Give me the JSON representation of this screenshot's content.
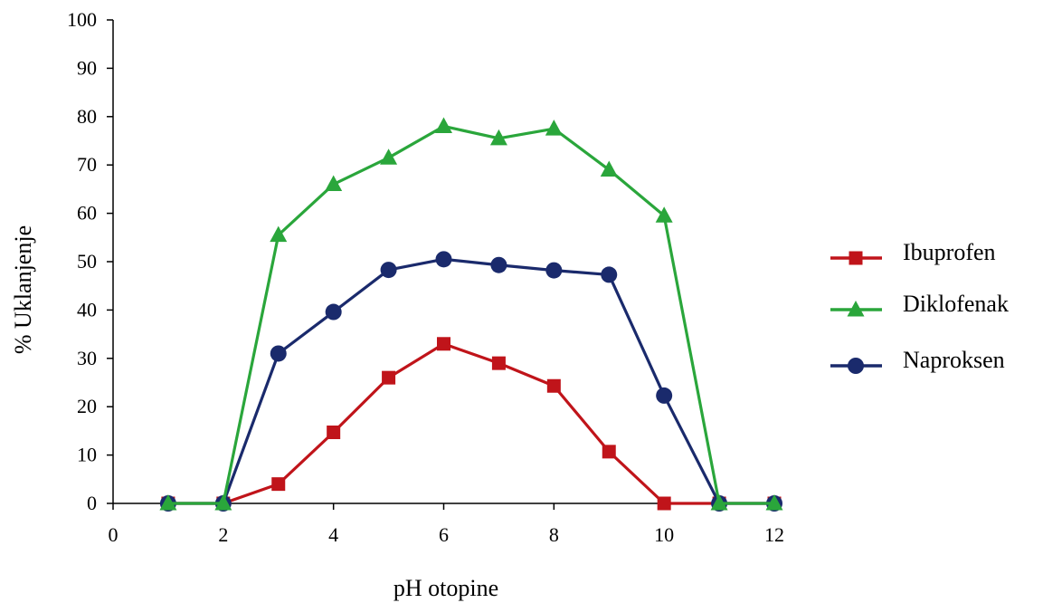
{
  "chart_data": {
    "type": "line",
    "title": "",
    "xlabel": "pH otopine",
    "ylabel": "% Uklanjenje",
    "xlim": [
      0,
      12
    ],
    "ylim": [
      0,
      100
    ],
    "x_ticks": [
      0,
      2,
      4,
      6,
      8,
      10,
      12
    ],
    "y_ticks": [
      0,
      10,
      20,
      30,
      40,
      50,
      60,
      70,
      80,
      90,
      100
    ],
    "x_tick_labels": [
      "0",
      "2",
      "4",
      "6",
      "8",
      "10",
      "12"
    ],
    "y_tick_labels": [
      "0",
      "10",
      "20",
      "30",
      "40",
      "50",
      "60",
      "70",
      "80",
      "90",
      "100"
    ],
    "grid": false,
    "legend_position": "right",
    "x": [
      1,
      2,
      3,
      4,
      5,
      6,
      7,
      8,
      9,
      10,
      11,
      12
    ],
    "series": [
      {
        "name": "Ibuprofen",
        "color": "#c0141a",
        "marker": "square",
        "values": [
          0,
          0,
          4,
          14.7,
          26,
          33,
          29,
          24.3,
          10.7,
          0,
          0,
          0
        ]
      },
      {
        "name": "Diklofenak",
        "color": "#2aa63b",
        "marker": "triangle",
        "values": [
          0,
          0,
          55.5,
          66,
          71.5,
          78,
          75.5,
          77.5,
          69,
          59.5,
          0,
          0
        ]
      },
      {
        "name": "Naproksen",
        "color": "#1a2a6c",
        "marker": "circle",
        "values": [
          0,
          0,
          31,
          39.6,
          48.3,
          50.5,
          49.3,
          48.2,
          47.3,
          22.3,
          0,
          0
        ]
      }
    ]
  }
}
